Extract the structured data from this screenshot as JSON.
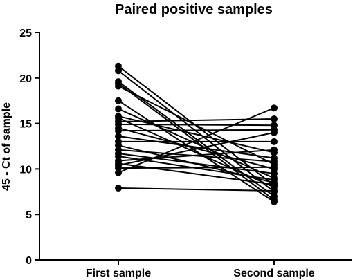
{
  "chart_data": {
    "type": "line",
    "title": "Paired positive samples",
    "xlabel": "",
    "ylabel": "45 - Ct of sample",
    "categories": [
      "First sample",
      "Second sample"
    ],
    "ylim": [
      0,
      25
    ],
    "yticks": [
      0,
      5,
      10,
      15,
      20,
      25
    ],
    "grid": false,
    "legend": "none",
    "series": [
      {
        "values": [
          21.3,
          8.2
        ]
      },
      {
        "values": [
          20.8,
          7.5
        ]
      },
      {
        "values": [
          19.6,
          7.0
        ]
      },
      {
        "values": [
          19.4,
          6.6
        ]
      },
      {
        "values": [
          19.1,
          10.5
        ]
      },
      {
        "values": [
          17.5,
          6.4
        ]
      },
      {
        "values": [
          16.6,
          9.0
        ]
      },
      {
        "values": [
          15.8,
          11.8
        ]
      },
      {
        "values": [
          15.6,
          8.0
        ]
      },
      {
        "values": [
          15.2,
          15.5
        ]
      },
      {
        "values": [
          14.9,
          14.8
        ]
      },
      {
        "values": [
          14.5,
          10.0
        ]
      },
      {
        "values": [
          14.2,
          14.3
        ]
      },
      {
        "values": [
          13.6,
          11.2
        ]
      },
      {
        "values": [
          13.0,
          13.0
        ]
      },
      {
        "values": [
          12.6,
          8.5
        ]
      },
      {
        "values": [
          12.1,
          10.8
        ]
      },
      {
        "values": [
          11.7,
          9.5
        ]
      },
      {
        "values": [
          11.4,
          8.8
        ]
      },
      {
        "values": [
          10.9,
          12.1
        ]
      },
      {
        "values": [
          10.6,
          8.3
        ]
      },
      {
        "values": [
          10.4,
          14.0
        ]
      },
      {
        "values": [
          10.1,
          10.2
        ]
      },
      {
        "values": [
          9.6,
          16.7
        ]
      },
      {
        "values": [
          7.9,
          7.6
        ]
      }
    ]
  }
}
